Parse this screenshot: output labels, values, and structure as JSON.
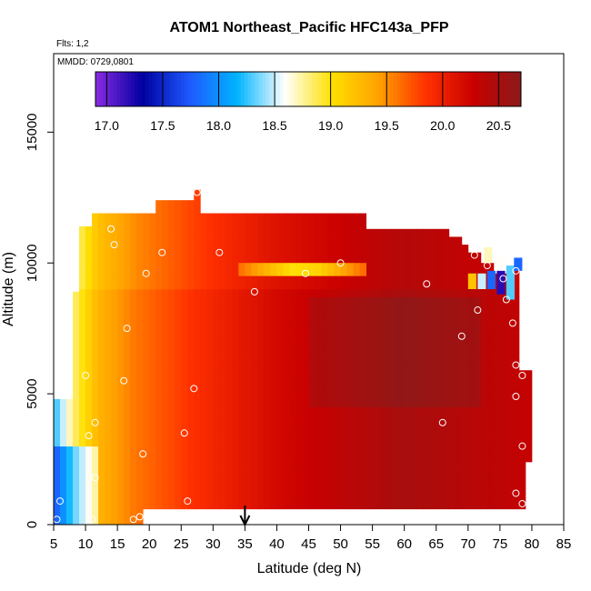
{
  "chart_data": {
    "type": "heatmap",
    "title": "ATOM1 Northeast_Pacific HFC143a_PFP",
    "flights_label": "Flts: 1,2",
    "mmdd_label": "MMDD: 0729,0801",
    "xlabel": "Latitude (deg N)",
    "ylabel": "Altitude (m)",
    "xlim": [
      5,
      85
    ],
    "ylim": [
      0,
      18000
    ],
    "x_ticks": [
      "5",
      "10",
      "15",
      "20",
      "25",
      "30",
      "35",
      "40",
      "45",
      "50",
      "55",
      "60",
      "65",
      "70",
      "75",
      "80",
      "85"
    ],
    "y_ticks": [
      "0",
      "5000",
      "10000",
      "15000"
    ],
    "marker_latitude": 35,
    "colorbar": {
      "range": [
        16.9,
        20.7
      ],
      "ticks": [
        "17.0",
        "17.5",
        "18.0",
        "18.5",
        "19.0",
        "19.5",
        "20.0",
        "20.5"
      ],
      "tick_values": [
        17.0,
        17.5,
        18.0,
        18.5,
        19.0,
        19.5,
        20.0,
        20.5
      ],
      "colors": [
        "#8a2be2",
        "#0000a0",
        "#1e5aff",
        "#00b4ff",
        "#ffffff",
        "#ffe000",
        "#ffa000",
        "#ff3000",
        "#c80000",
        "#8b1a1a"
      ]
    },
    "field": {
      "gradient_anchors": [
        {
          "lat": 5,
          "value": 18.2
        },
        {
          "lat": 8,
          "value": 18.8
        },
        {
          "lat": 12,
          "value": 19.3
        },
        {
          "lat": 18,
          "value": 19.6
        },
        {
          "lat": 28,
          "value": 19.9
        },
        {
          "lat": 40,
          "value": 20.2
        },
        {
          "lat": 60,
          "value": 20.5
        },
        {
          "lat": 80,
          "value": 20.3
        }
      ]
    },
    "samples": [
      {
        "lat": 8,
        "alt": 11300
      },
      {
        "lat": 14,
        "alt": 11300
      },
      {
        "lat": 15,
        "alt": 12400
      },
      {
        "lat": 27.5,
        "alt": 12700
      },
      {
        "lat": 67.5,
        "alt": 11400
      },
      {
        "lat": 14.5,
        "alt": 10700
      },
      {
        "lat": 22,
        "alt": 10400
      },
      {
        "lat": 31,
        "alt": 10400
      },
      {
        "lat": 50,
        "alt": 10000
      },
      {
        "lat": 71,
        "alt": 10300
      },
      {
        "lat": 73,
        "alt": 9900
      },
      {
        "lat": 75.5,
        "alt": 9400
      },
      {
        "lat": 77.5,
        "alt": 9700
      },
      {
        "lat": 19.5,
        "alt": 9600
      },
      {
        "lat": 44.5,
        "alt": 9600
      },
      {
        "lat": 36.5,
        "alt": 8900
      },
      {
        "lat": 63.5,
        "alt": 9200
      },
      {
        "lat": 76,
        "alt": 8600
      },
      {
        "lat": 71.5,
        "alt": 8200
      },
      {
        "lat": 16.5,
        "alt": 7500
      },
      {
        "lat": 69,
        "alt": 7200
      },
      {
        "lat": 77,
        "alt": 7700
      },
      {
        "lat": 10,
        "alt": 5700
      },
      {
        "lat": 16,
        "alt": 5500
      },
      {
        "lat": 27,
        "alt": 5200
      },
      {
        "lat": 77.5,
        "alt": 6100
      },
      {
        "lat": 78.5,
        "alt": 5700
      },
      {
        "lat": 77.5,
        "alt": 4900
      },
      {
        "lat": 11.5,
        "alt": 3900
      },
      {
        "lat": 10.5,
        "alt": 3400
      },
      {
        "lat": 25.5,
        "alt": 3500
      },
      {
        "lat": 66,
        "alt": 3900
      },
      {
        "lat": 78.5,
        "alt": 3000
      },
      {
        "lat": 19,
        "alt": 2700
      },
      {
        "lat": 11.5,
        "alt": 1800
      },
      {
        "lat": 6,
        "alt": 900
      },
      {
        "lat": 26,
        "alt": 900
      },
      {
        "lat": 77.5,
        "alt": 1200
      },
      {
        "lat": 78.5,
        "alt": 800
      },
      {
        "lat": 5.5,
        "alt": 200
      },
      {
        "lat": 11,
        "alt": 200
      },
      {
        "lat": 17.5,
        "alt": 200
      },
      {
        "lat": 18.5,
        "alt": 300
      }
    ]
  }
}
